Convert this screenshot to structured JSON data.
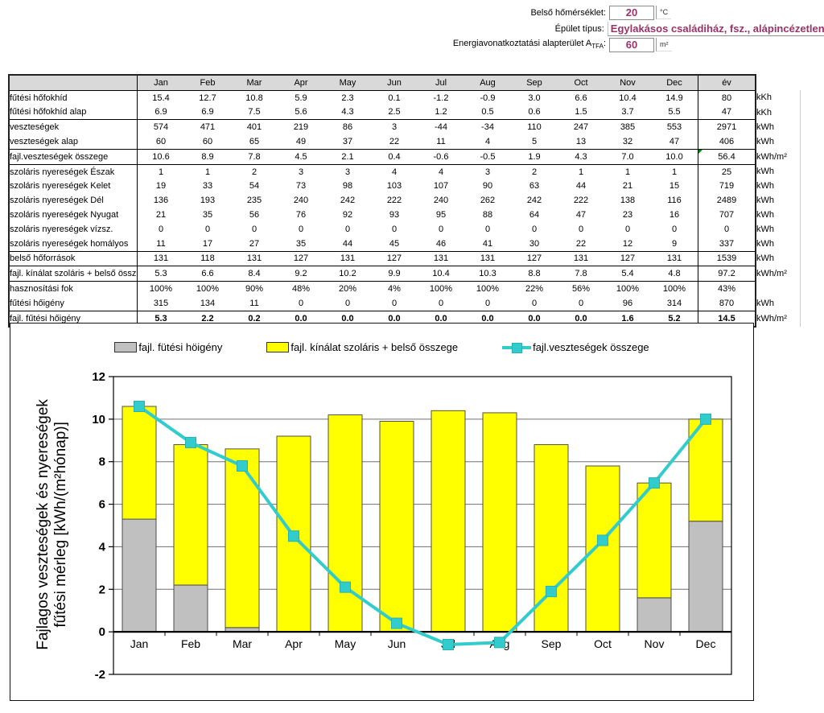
{
  "inputs": {
    "temperature": {
      "label": "Belső hőmérséklet:",
      "value": "20",
      "unit": "°C"
    },
    "building": {
      "label": "Épület típus:",
      "value": "Egylakásos családiház, fsz., alápincézetlen"
    },
    "area": {
      "label_main": "Energiavonatkoztatási alapterület A",
      "label_sub": "TFA",
      "label_colon": ":",
      "value": "60",
      "unit": "m²"
    }
  },
  "table": {
    "months": [
      "Jan",
      "Feb",
      "Mar",
      "Apr",
      "May",
      "Jun",
      "Jul",
      "Aug",
      "Sep",
      "Oct",
      "Nov",
      "Dec"
    ],
    "year_header": "év",
    "rows": [
      {
        "label": "fűtési hőfokhíd",
        "values": [
          "15.4",
          "12.7",
          "10.8",
          "5.9",
          "2.3",
          "0.1",
          "-1.2",
          "-0.9",
          "3.0",
          "6.6",
          "10.4",
          "14.9"
        ],
        "year": "80",
        "unit": "kKh",
        "group": false
      },
      {
        "label": "fűtési hőfokhíd alap",
        "values": [
          "6.9",
          "6.9",
          "7.5",
          "5.6",
          "4.3",
          "2.5",
          "1.2",
          "0.5",
          "0.6",
          "1.5",
          "3.7",
          "5.5"
        ],
        "year": "47",
        "unit": "kKh",
        "group": false
      },
      {
        "label": "veszteségek",
        "values": [
          "574",
          "471",
          "401",
          "219",
          "86",
          "3",
          "-44",
          "-34",
          "110",
          "247",
          "385",
          "553"
        ],
        "year": "2971",
        "unit": "kWh",
        "group": true
      },
      {
        "label": "veszteségek alap",
        "values": [
          "60",
          "60",
          "65",
          "49",
          "37",
          "22",
          "11",
          "4",
          "5",
          "13",
          "32",
          "47"
        ],
        "year": "406",
        "unit": "kWh",
        "group": false
      },
      {
        "label": "fajl.veszteségek összege",
        "values": [
          "10.6",
          "8.9",
          "7.8",
          "4.5",
          "2.1",
          "0.4",
          "-0.6",
          "-0.5",
          "1.9",
          "4.3",
          "7.0",
          "10.0"
        ],
        "year": "56.4",
        "unit": "kWh/m²",
        "group": true,
        "year_flag": true
      },
      {
        "label": "szoláris nyereségek Észak",
        "values": [
          "1",
          "1",
          "2",
          "3",
          "3",
          "4",
          "4",
          "3",
          "2",
          "1",
          "1",
          "1"
        ],
        "year": "25",
        "unit": "kWh",
        "group": true
      },
      {
        "label": "szoláris nyereségek Kelet",
        "values": [
          "19",
          "33",
          "54",
          "73",
          "98",
          "103",
          "107",
          "90",
          "63",
          "44",
          "21",
          "15"
        ],
        "year": "719",
        "unit": "kWh",
        "group": false
      },
      {
        "label": "szoláris nyereségek Dél",
        "values": [
          "136",
          "193",
          "235",
          "240",
          "242",
          "222",
          "240",
          "262",
          "242",
          "222",
          "138",
          "116"
        ],
        "year": "2489",
        "unit": "kWh",
        "group": false
      },
      {
        "label": "szoláris nyereségek Nyugat",
        "values": [
          "21",
          "35",
          "56",
          "76",
          "92",
          "93",
          "95",
          "88",
          "64",
          "47",
          "23",
          "16"
        ],
        "year": "707",
        "unit": "kWh",
        "group": false
      },
      {
        "label": "szoláris nyereségek vízsz.",
        "values": [
          "0",
          "0",
          "0",
          "0",
          "0",
          "0",
          "0",
          "0",
          "0",
          "0",
          "0",
          "0"
        ],
        "year": "0",
        "unit": "kWh",
        "group": false
      },
      {
        "label": "szoláris nyereségek homályos",
        "values": [
          "11",
          "17",
          "27",
          "35",
          "44",
          "45",
          "46",
          "41",
          "30",
          "22",
          "12",
          "9"
        ],
        "year": "337",
        "unit": "kWh",
        "group": false
      },
      {
        "label": "belső hőforrások",
        "values": [
          "131",
          "118",
          "131",
          "127",
          "131",
          "127",
          "131",
          "131",
          "127",
          "131",
          "127",
          "131"
        ],
        "year": "1539",
        "unit": "kWh",
        "group": true
      },
      {
        "label": "fajl. kínálat szoláris + belső össz",
        "values": [
          "5.3",
          "6.6",
          "8.4",
          "9.2",
          "10.2",
          "9.9",
          "10.4",
          "10.3",
          "8.8",
          "7.8",
          "5.4",
          "4.8"
        ],
        "year": "97.2",
        "unit": "kWh/m²",
        "group": true
      },
      {
        "label": "hasznosítási fok",
        "values": [
          "100%",
          "100%",
          "90%",
          "48%",
          "20%",
          "4%",
          "100%",
          "100%",
          "22%",
          "56%",
          "100%",
          "100%"
        ],
        "year": "43%",
        "unit": "",
        "group": true
      },
      {
        "label": "fűtési hőigény",
        "values": [
          "315",
          "134",
          "11",
          "0",
          "0",
          "0",
          "0",
          "0",
          "0",
          "0",
          "96",
          "314"
        ],
        "year": "870",
        "unit": "kWh",
        "group": false
      },
      {
        "label": "fajl. fűtési hőigény",
        "values": [
          "5.3",
          "2.2",
          "0.2",
          "0.0",
          "0.0",
          "0.0",
          "0.0",
          "0.0",
          "0.0",
          "0.0",
          "1.6",
          "5.2"
        ],
        "year": "14.5",
        "unit": "kWh/m²",
        "group": true,
        "bold": true
      }
    ]
  },
  "chart_data": {
    "type": "bar",
    "subtype": "stacked-bars-with-line",
    "categories": [
      "Jan",
      "Feb",
      "Mar",
      "Apr",
      "May",
      "Jun",
      "Jul",
      "Aug",
      "Sep",
      "Oct",
      "Nov",
      "Dec"
    ],
    "series": [
      {
        "name": "fajl. fütési höigény",
        "type": "bar",
        "color": "#C0C0C0",
        "values": [
          5.3,
          2.2,
          0.2,
          0,
          0,
          0,
          0,
          0,
          0,
          0,
          1.6,
          5.2
        ]
      },
      {
        "name": "fajl. kínálat szoláris + belső összege",
        "type": "bar",
        "color": "#FFFF00",
        "values": [
          5.3,
          6.6,
          8.4,
          9.2,
          10.2,
          9.9,
          10.4,
          10.3,
          8.8,
          7.8,
          5.4,
          4.8
        ]
      },
      {
        "name": "fajl.veszteségek összege",
        "type": "line",
        "color": "#33CCCC",
        "values": [
          10.6,
          8.9,
          7.8,
          4.5,
          2.1,
          0.4,
          -0.6,
          -0.5,
          1.9,
          4.3,
          7.0,
          10.0
        ]
      }
    ],
    "ylabel_line1": "Fajlagos veszteségek és nyereségek",
    "ylabel_line2": "fűtési mérleg  [kWh/(m²hónap)]",
    "ylim": [
      -2,
      12
    ],
    "ytick_step": 2,
    "grid": true,
    "legend_position": "top"
  }
}
